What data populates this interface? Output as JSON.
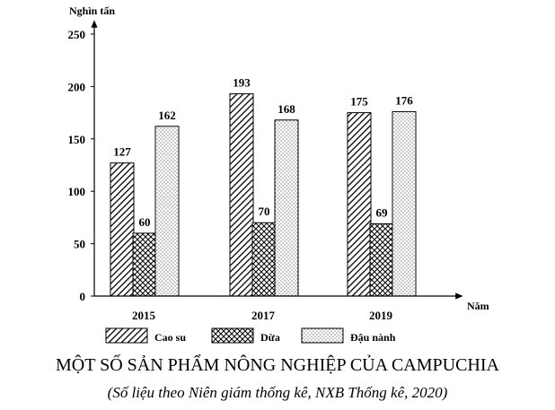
{
  "chart_data": {
    "type": "bar",
    "title": "MỘT SỐ SẢN PHẨM NÔNG NGHIỆP CỦA CAMPUCHIA",
    "subtitle": "(Số liệu theo Niên giám thống kê, NXB Thống kê, 2020)",
    "ylabel": "Nghìn tấn",
    "xlabel": "Năm",
    "categories": [
      "2015",
      "2017",
      "2019"
    ],
    "ylim": [
      0,
      250
    ],
    "yticks": [
      0,
      50,
      100,
      150,
      200,
      250
    ],
    "grid": false,
    "legend_position": "bottom",
    "series": [
      {
        "name": "Cao su",
        "values": [
          127,
          193,
          175
        ],
        "pattern": "diagonal-hatch"
      },
      {
        "name": "Dừa",
        "values": [
          60,
          70,
          69
        ],
        "pattern": "cross-hatch"
      },
      {
        "name": "Đậu nành",
        "values": [
          162,
          168,
          176
        ],
        "pattern": "dots"
      }
    ]
  }
}
